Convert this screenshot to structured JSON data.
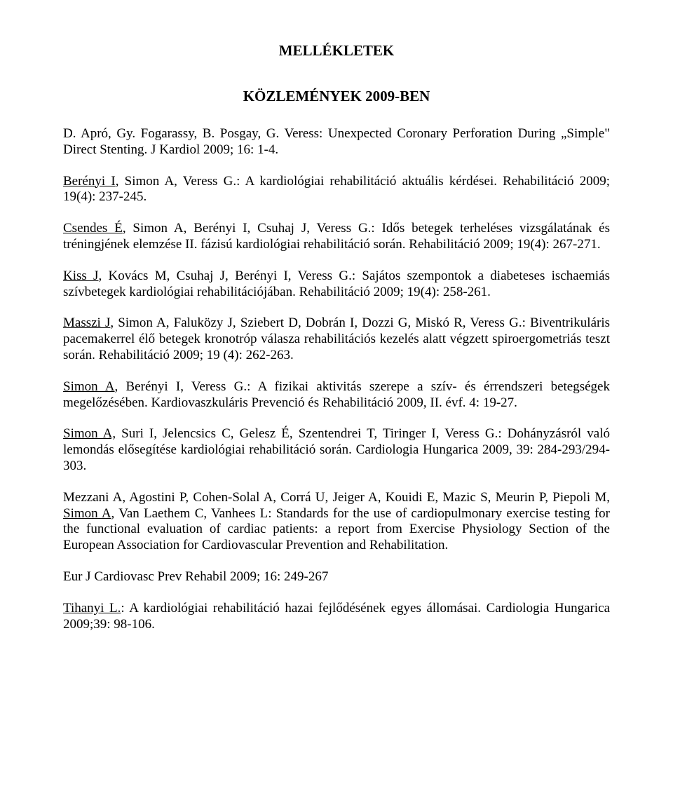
{
  "title1": "MELLÉKLETEK",
  "title2": "KÖZLEMÉNYEK 2009-BEN",
  "entries": [
    {
      "authors": "D. Apró, Gy. Fogarassy, B. Posgay, G. Veress:",
      "body": " Unexpected Coronary Perforation During „Simple\" Direct Stenting. J Kardiol 2009; 16: 1-4."
    },
    {
      "lead": "Berényi I",
      "authors": ", Simon A, Veress G.:",
      "body": " A kardiológiai rehabilitáció aktuális kérdései. Rehabilitáció 2009; 19(4): 237-245."
    },
    {
      "lead": "Csendes É",
      "authors": ", Simon A, Berényi I, Csuhaj J, Veress G.:",
      "body": " Idős betegek terheléses vizsgálatának és tréningjének elemzése II. fázisú kardiológiai rehabilitáció során. Rehabilitáció 2009; 19(4): 267-271."
    },
    {
      "lead": "Kiss J",
      "authors": ", Kovács M, Csuhaj J, Berényi I, Veress G.:",
      "body": " Sajátos szempontok a diabeteses ischaemiás szívbetegek kardiológiai rehabilitációjában. Rehabilitáció 2009; 19(4): 258-261."
    },
    {
      "lead": "Masszi J",
      "authors": ", Simon A, Faluközy J, Sziebert D, Dobrán I, Dozzi G, Miskó R, Veress G.:",
      "body": " Biventrikuláris pacemakerrel élő betegek kronotróp válasza rehabilitációs kezelés alatt végzett spiroergometriás teszt során. Rehabilitáció 2009; 19 (4): 262-263."
    },
    {
      "lead": "Simon A",
      "authors": ", Berényi I, Veress G.:",
      "body": " A fizikai aktivitás szerepe a szív- és érrendszeri betegségek megelőzésében. Kardiovaszkuláris Prevenció és Rehabilitáció 2009, II. évf. 4: 19-27."
    },
    {
      "lead": "Simon A,",
      "authors": " Suri I, Jelencsics C, Gelesz É, Szentendrei T, Tiringer I, Veress G.:",
      "body": " Dohányzásról való lemondás elősegítése kardiológiai rehabilitáció során. Cardiologia Hungarica 2009, 39: 284-293/294-303."
    },
    {
      "pre": "Mezzani A, Agostini P, Cohen-Solal A, Corrá U, Jeiger A, Kouidi E, Mazic S, Meurin P, Piepoli M, ",
      "lead": "Simon A",
      "authors": ", Van Laethem C, Vanhees L:",
      "body": " Standards for the use of cardiopulmonary exercise testing for the functional evaluation of cardiac patients: a report from Exercise Physiology Section of the European Association for Cardiovascular Prevention and Rehabilitation.",
      "tail": "Eur J Cardiovasc Prev Rehabil 2009; 16: 249-267"
    },
    {
      "lead": "Tihanyi L.",
      "authors": ":",
      "body": " A kardiológiai rehabilitáció hazai fejlődésének egyes állomásai. Cardiologia Hungarica 2009;39: 98-106."
    }
  ]
}
